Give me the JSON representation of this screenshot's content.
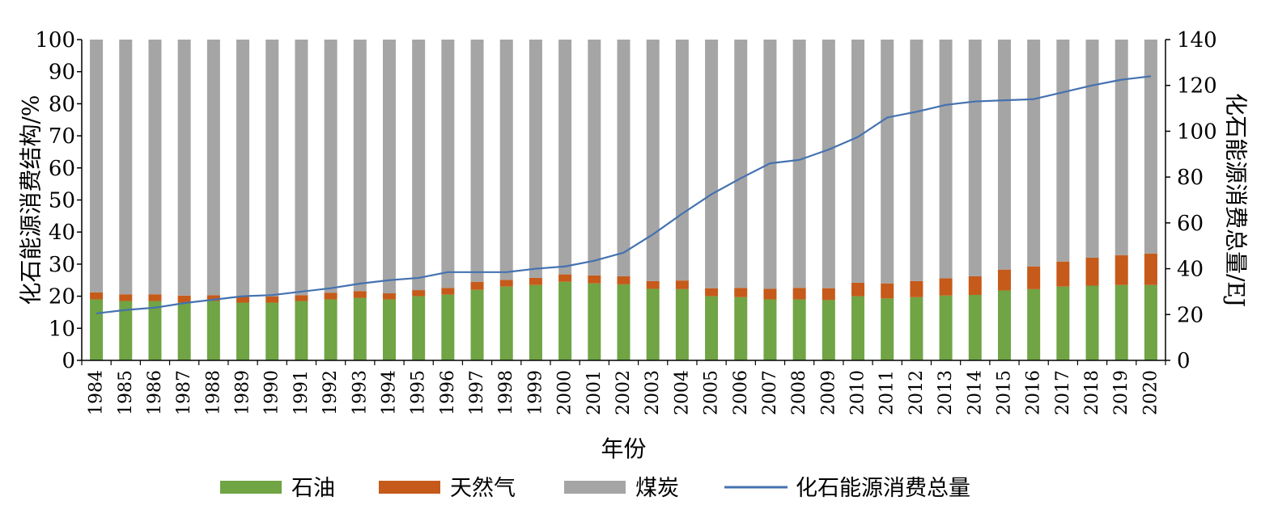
{
  "chart_data": {
    "type": "bar",
    "stacked": true,
    "categories": [
      "1984",
      "1985",
      "1986",
      "1987",
      "1988",
      "1989",
      "1990",
      "1991",
      "1992",
      "1993",
      "1994",
      "1995",
      "1996",
      "1997",
      "1998",
      "1999",
      "2000",
      "2001",
      "2002",
      "2003",
      "2004",
      "2005",
      "2006",
      "2007",
      "2008",
      "2009",
      "2010",
      "2011",
      "2012",
      "2013",
      "2014",
      "2015",
      "2016",
      "2017",
      "2018",
      "2019",
      "2020"
    ],
    "xlabel": "年份",
    "ylabel_left": "化石能源消费结构/%",
    "ylabel_right": "化石能源消费总量/EJ",
    "ylim_left": [
      0,
      100
    ],
    "ylim_right": [
      0,
      140
    ],
    "yticks_left": [
      0,
      10,
      20,
      30,
      40,
      50,
      60,
      70,
      80,
      90,
      100
    ],
    "yticks_right": [
      0,
      20,
      40,
      60,
      80,
      100,
      120,
      140
    ],
    "grid": false,
    "legend_position": "bottom",
    "series": [
      {
        "name": "石油",
        "axis": "left",
        "color": "#70a444",
        "values": [
          19,
          18.5,
          18.5,
          18,
          18.5,
          18,
          18,
          18.5,
          19,
          19.5,
          19,
          20,
          20.5,
          22,
          23,
          23.5,
          24.5,
          24,
          23.7,
          22.3,
          22.2,
          20,
          19.7,
          19,
          19,
          18.8,
          20,
          19.3,
          19.7,
          20.2,
          20.4,
          21.8,
          22.2,
          23,
          23.3,
          23.5,
          23.5
        ]
      },
      {
        "name": "天然气",
        "axis": "left",
        "color": "#c55a1a",
        "values": [
          2.2,
          2.1,
          2.1,
          2.2,
          1.8,
          1.8,
          1.9,
          1.8,
          2.1,
          2.1,
          1.9,
          1.9,
          2.1,
          2.5,
          2.1,
          2.2,
          2.3,
          2.5,
          2.5,
          2.4,
          2.7,
          2.5,
          2.9,
          3.3,
          3.6,
          3.7,
          4.2,
          4.7,
          5,
          5.4,
          5.8,
          6.5,
          7.1,
          7.8,
          8.7,
          9.3,
          9.8
        ]
      },
      {
        "name": "煤炭",
        "axis": "left",
        "color": "#a5a5a5",
        "values": [
          78.8,
          79.4,
          79.4,
          79.8,
          79.7,
          80.2,
          80.1,
          79.7,
          78.9,
          78.4,
          79.1,
          78.1,
          77.4,
          75.5,
          74.9,
          74.3,
          73.2,
          73.5,
          73.8,
          75.3,
          75.1,
          77.5,
          77.4,
          77.7,
          77.4,
          77.5,
          75.8,
          76,
          75.3,
          74.4,
          73.8,
          71.7,
          70.7,
          69.2,
          68,
          67.2,
          66.7
        ]
      },
      {
        "name": "化石能源消费总量",
        "axis": "right",
        "type": "line",
        "color": "#4472b0",
        "values": [
          20.5,
          22,
          23,
          25,
          26.5,
          28,
          28.5,
          30,
          31.5,
          33.5,
          35,
          36,
          38.5,
          38.5,
          38.5,
          40,
          41,
          43.5,
          47,
          55,
          64,
          72.5,
          79.5,
          86,
          87.5,
          92,
          97.5,
          106,
          108.5,
          111.5,
          113,
          113.5,
          114,
          117,
          120,
          122.5,
          124
        ]
      }
    ]
  }
}
